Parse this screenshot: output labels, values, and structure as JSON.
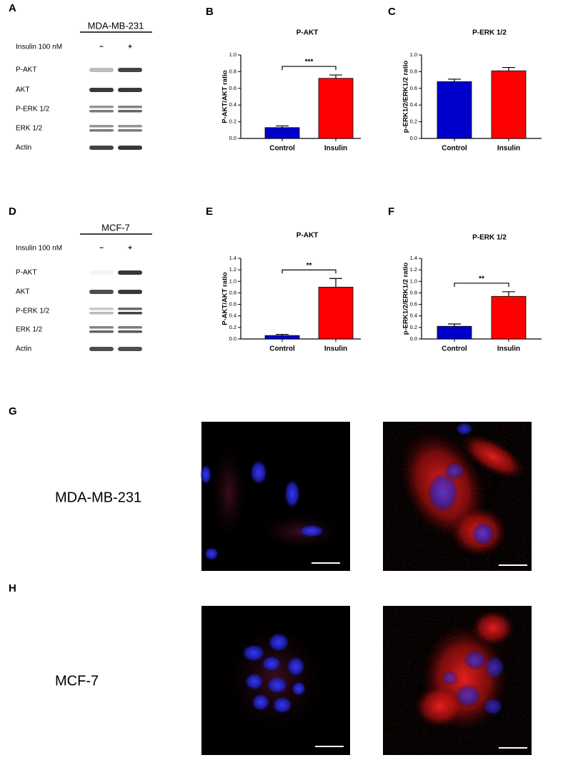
{
  "chart_data": [
    {
      "panel": "B",
      "type": "bar",
      "title": "P-AKT",
      "y_label": "P-AKT/AKT ratio",
      "categories": [
        "Control",
        "Insulin"
      ],
      "values": [
        0.13,
        0.72
      ],
      "errors": [
        0.02,
        0.04
      ],
      "colors": [
        "#0000cc",
        "#ff0000"
      ],
      "ylim": [
        0,
        1.0
      ],
      "yticks": [
        {
          "value": 0,
          "label": "0.0"
        },
        {
          "value": 0.2,
          "label": "0.2"
        },
        {
          "value": 0.4,
          "label": "0.4"
        },
        {
          "value": 0.6,
          "label": "0.6"
        },
        {
          "value": 0.8,
          "label": "0.8"
        },
        {
          "value": 1.0,
          "label": "1.0"
        }
      ],
      "significance": "***"
    },
    {
      "panel": "C",
      "type": "bar",
      "title": "P-ERK 1/2",
      "y_label": "p-ERK1/2/ERK1/2 ratio",
      "categories": [
        "Control",
        "Insulin"
      ],
      "values": [
        0.68,
        0.81
      ],
      "errors": [
        0.03,
        0.04
      ],
      "colors": [
        "#0000cc",
        "#ff0000"
      ],
      "ylim": [
        0,
        1.0
      ],
      "yticks": [
        {
          "value": 0,
          "label": "0.0"
        },
        {
          "value": 0.2,
          "label": "0.2"
        },
        {
          "value": 0.4,
          "label": "0.4"
        },
        {
          "value": 0.6,
          "label": "0.6"
        },
        {
          "value": 0.8,
          "label": "0.8"
        },
        {
          "value": 1.0,
          "label": "1.0"
        }
      ]
    },
    {
      "panel": "E",
      "type": "bar",
      "title": "P-AKT",
      "y_label": "P-AKT/AKT ratio",
      "categories": [
        "Control",
        "Insulin"
      ],
      "values": [
        0.06,
        0.9
      ],
      "errors": [
        0.02,
        0.15
      ],
      "colors": [
        "#0000cc",
        "#ff0000"
      ],
      "ylim": [
        0,
        1.4
      ],
      "yticks": [
        {
          "value": 0,
          "label": "0.0"
        },
        {
          "value": 0.2,
          "label": "0.2"
        },
        {
          "value": 0.4,
          "label": "0.4"
        },
        {
          "value": 0.6,
          "label": "0.6"
        },
        {
          "value": 0.8,
          "label": "0.8"
        },
        {
          "value": 1.0,
          "label": "1.0"
        },
        {
          "value": 1.2,
          "label": "1.2"
        },
        {
          "value": 1.4,
          "label": "1.4"
        }
      ],
      "significance": "**"
    },
    {
      "panel": "F",
      "type": "bar",
      "title": "P-ERK 1/2",
      "y_label": "p-ERK1/2/ERK1/2 ratio",
      "categories": [
        "Control",
        "Insulin"
      ],
      "values": [
        0.22,
        0.74
      ],
      "errors": [
        0.04,
        0.08
      ],
      "colors": [
        "#0000cc",
        "#ff0000"
      ],
      "ylim": [
        0,
        1.4
      ],
      "yticks": [
        {
          "value": 0,
          "label": "0.0"
        },
        {
          "value": 0.2,
          "label": "0.2"
        },
        {
          "value": 0.4,
          "label": "0.4"
        },
        {
          "value": 0.6,
          "label": "0.6"
        },
        {
          "value": 0.8,
          "label": "0.8"
        },
        {
          "value": 1.0,
          "label": "1.0"
        },
        {
          "value": 1.2,
          "label": "1.2"
        },
        {
          "value": 1.4,
          "label": "1.4"
        }
      ],
      "significance": "**"
    }
  ],
  "blots": [
    {
      "panel": "A",
      "cell_line": "MDA-MB-231",
      "treatment": "Insulin 100 nM",
      "conditions": [
        "−",
        "+"
      ],
      "rows": [
        "P-AKT",
        "AKT",
        "P-ERK 1/2",
        "ERK 1/2",
        "Actin"
      ]
    },
    {
      "panel": "D",
      "cell_line": "MCF-7",
      "treatment": "Insulin 100 nM",
      "conditions": [
        "−",
        "+"
      ],
      "rows": [
        "P-AKT",
        "AKT",
        "P-ERK 1/2",
        "ERK 1/2",
        "Actin"
      ]
    }
  ],
  "images": [
    {
      "panel": "G",
      "label": "MDA-MB-231"
    },
    {
      "panel": "H",
      "label": "MCF-7"
    }
  ]
}
